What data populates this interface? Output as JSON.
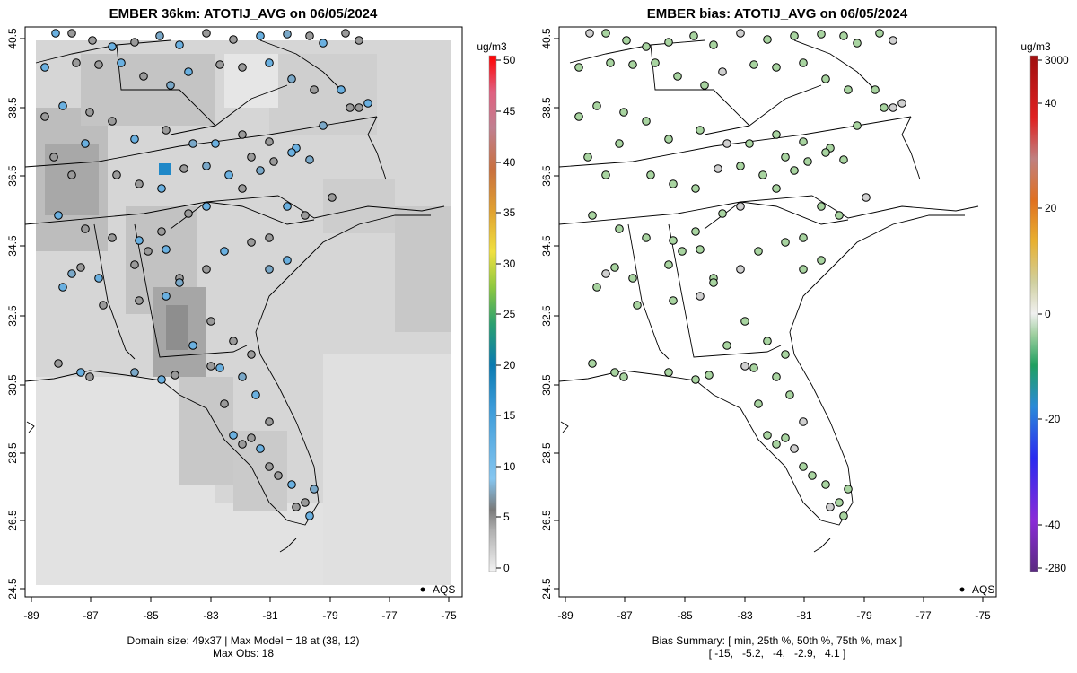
{
  "left_panel": {
    "title": "EMBER 36km: ATOTIJ_AVG on 06/05/2024",
    "footer_line1": "Domain size: 49x37 | Max Model = 18 at (38, 12)",
    "footer_line2": "Max Obs: 18",
    "legend_label": "AQS",
    "colorbar_unit": "ug/m3",
    "colorbar_ticks": [
      "0",
      "5",
      "10",
      "15",
      "20",
      "25",
      "30",
      "35",
      "40",
      "45",
      "50"
    ]
  },
  "right_panel": {
    "title": "EMBER bias: ATOTIJ_AVG on 06/05/2024",
    "footer_line1": "Bias Summary: [ min, 25th %, 50th %, 75th %, max ]",
    "footer_line2": "[ -15,   -5.2,   -4,   -2.9,   4.1 ]",
    "legend_label": "AQS",
    "colorbar_unit": "ug/m3",
    "colorbar_ticks": [
      "-280",
      "-40",
      "-20",
      "0",
      "20",
      "40",
      "3000"
    ]
  },
  "x_ticks": [
    "-89",
    "-87",
    "-85",
    "-83",
    "-81",
    "-79",
    "-77",
    "-75"
  ],
  "y_ticks": [
    "24.5",
    "26.5",
    "28.5",
    "30.5",
    "32.5",
    "34.5",
    "36.5",
    "38.5",
    "40.5"
  ],
  "colors": {
    "obs_blue": "#6ab0e0",
    "obs_gray": "#9a9a9a",
    "bias_green": "#a8d4a0",
    "model_highlight": "#1f88c8"
  }
}
